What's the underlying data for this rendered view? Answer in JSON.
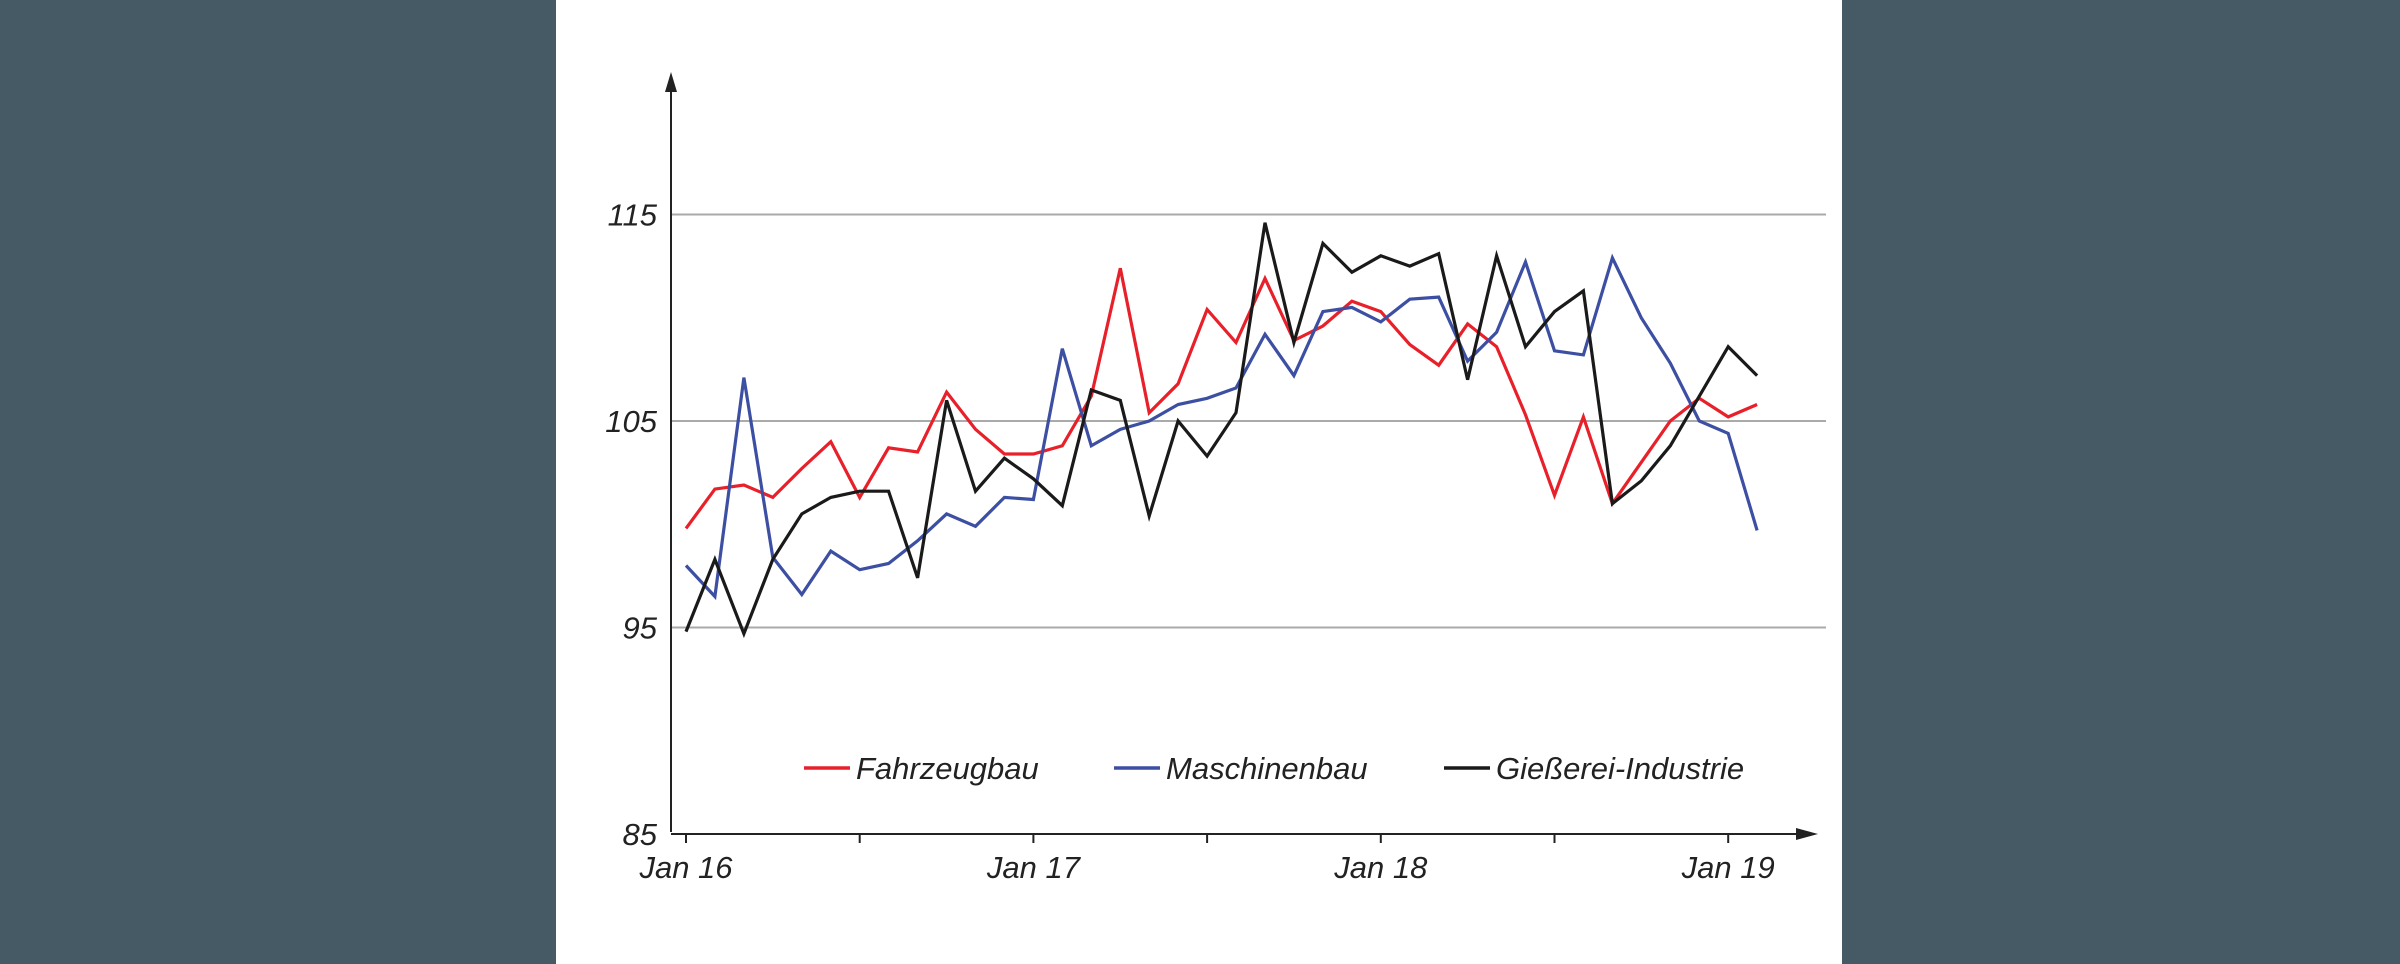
{
  "chart_data": {
    "type": "line",
    "title": "",
    "xlabel": "",
    "ylabel": "",
    "ylim": [
      85,
      122
    ],
    "yticks": [
      85,
      95,
      105,
      115
    ],
    "ytick_labels": [
      "85",
      "95",
      "105",
      "115"
    ],
    "gridlines": [
      95,
      105,
      115
    ],
    "x_tick_labels": [
      "Jan 16",
      "Jan 17",
      "Jan 18",
      "Jan 19"
    ],
    "x_start_month": "2016-01",
    "x_months": 38,
    "legend_position": "bottom-inside",
    "grid": true,
    "colors": {
      "grid": "#aaaaaa",
      "axis": "#222222",
      "Fahrzeugbau": "#e8202a",
      "Maschinenbau": "#3d4fa3",
      "Gießerei-Industrie": "#1a1a1a"
    },
    "series": [
      {
        "name": "Fahrzeugbau",
        "values": [
          99.8,
          101.7,
          101.9,
          101.3,
          102.7,
          104.0,
          101.3,
          103.7,
          103.5,
          106.4,
          104.6,
          103.4,
          103.4,
          103.8,
          106.2,
          112.4,
          105.4,
          106.8,
          110.4,
          108.8,
          111.9,
          108.9,
          109.6,
          110.8,
          110.3,
          108.7,
          107.7,
          109.7,
          108.6,
          105.3,
          101.4,
          105.2,
          101.0,
          103.0,
          105.0,
          106.1,
          105.2,
          105.8
        ]
      },
      {
        "name": "Maschinenbau",
        "values": [
          98.0,
          96.5,
          107.1,
          98.4,
          96.6,
          98.7,
          97.8,
          98.1,
          99.2,
          100.5,
          99.9,
          101.3,
          101.2,
          108.5,
          103.8,
          104.6,
          105.0,
          105.8,
          106.1,
          106.6,
          109.2,
          107.2,
          110.3,
          110.5,
          109.8,
          110.9,
          111.0,
          107.9,
          109.3,
          112.7,
          108.4,
          108.2,
          112.9,
          110.0,
          107.8,
          105.0,
          104.4,
          99.7
        ]
      },
      {
        "name": "Gießerei-Industrie",
        "values": [
          94.8,
          98.3,
          94.7,
          98.3,
          100.5,
          101.3,
          101.6,
          101.6,
          97.4,
          106.0,
          101.6,
          103.2,
          102.2,
          100.9,
          106.5,
          106.0,
          100.4,
          105.0,
          103.3,
          105.4,
          114.6,
          108.8,
          113.6,
          112.2,
          113.0,
          112.5,
          113.1,
          107.0,
          113.0,
          108.6,
          110.3,
          111.3,
          101.0,
          102.1,
          103.8,
          106.2,
          108.6,
          107.2
        ]
      }
    ]
  }
}
